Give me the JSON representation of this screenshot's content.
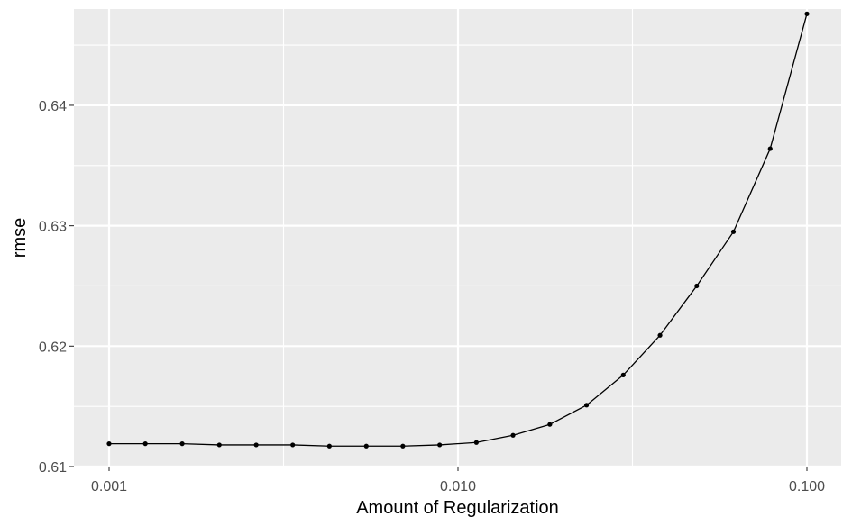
{
  "chart_data": {
    "type": "line",
    "title": "",
    "xlabel": "Amount of Regularization",
    "ylabel": "rmse",
    "x_scale": "log10",
    "xlim": [
      0.001,
      0.1
    ],
    "ylim": [
      0.61,
      0.648
    ],
    "x_ticks": [
      0.001,
      0.01,
      0.1
    ],
    "x_tick_labels": [
      "0.001",
      "0.010",
      "0.100"
    ],
    "y_ticks": [
      0.61,
      0.62,
      0.63,
      0.64
    ],
    "y_tick_labels": [
      "0.61",
      "0.62",
      "0.63",
      "0.64"
    ],
    "grid": true,
    "legend": "none",
    "colors": {
      "panel_background": "#ebebeb",
      "grid": "#ffffff",
      "line": "#000000",
      "point": "#000000"
    },
    "series": [
      {
        "x": [
          0.001,
          0.00127,
          0.00162,
          0.00207,
          0.00264,
          0.00336,
          0.00428,
          0.00546,
          0.00695,
          0.00886,
          0.01129,
          0.01438,
          0.01833,
          0.02336,
          0.02976,
          0.03793,
          0.04833,
          0.06158,
          0.07848,
          0.1
        ],
        "y": [
          0.6119,
          0.6119,
          0.6119,
          0.6118,
          0.6118,
          0.6118,
          0.6117,
          0.6117,
          0.6117,
          0.6118,
          0.612,
          0.6126,
          0.6135,
          0.6151,
          0.6176,
          0.6209,
          0.625,
          0.6295,
          0.6364,
          0.6476
        ]
      }
    ]
  }
}
